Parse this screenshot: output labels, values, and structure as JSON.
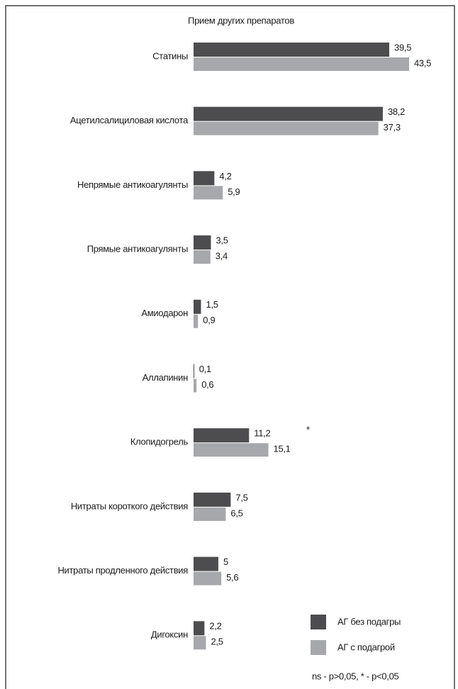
{
  "chart_data": {
    "type": "bar",
    "orientation": "horizontal",
    "title": "Прием других препаратов",
    "categories": [
      "Статины",
      "Ацетилсалициловая кислота",
      "Непрямые антикоагулянты",
      "Прямые антикоагулянты",
      "Амиодарон",
      "Аллапинин",
      "Клопидогрель",
      "Нитраты короткого действия",
      "Нитраты продленного действия",
      "Дигоксин"
    ],
    "series": [
      {
        "name": "АГ без подагры",
        "color": "#4d4d4f",
        "values": [
          39.5,
          38.2,
          4.2,
          3.5,
          1.5,
          0.1,
          11.2,
          7.5,
          5,
          2.2
        ],
        "value_labels": [
          "39,5",
          "38,2",
          "4,2",
          "3,5",
          "1,5",
          "0,1",
          "11,2",
          "7,5",
          "5",
          "2,2"
        ]
      },
      {
        "name": "АГ с подагрой",
        "color": "#a7a8ab",
        "values": [
          43.5,
          37.3,
          5.9,
          3.4,
          0.9,
          0.6,
          15.1,
          6.5,
          5.6,
          2.5
        ],
        "value_labels": [
          "43,5",
          "37,3",
          "5,9",
          "3,4",
          "0,9",
          "0,6",
          "15,1",
          "6,5",
          "5,6",
          "2,5"
        ]
      }
    ],
    "annotations": [
      "*"
    ],
    "footnote": "ns - p>0,05, * - p<0,05"
  }
}
